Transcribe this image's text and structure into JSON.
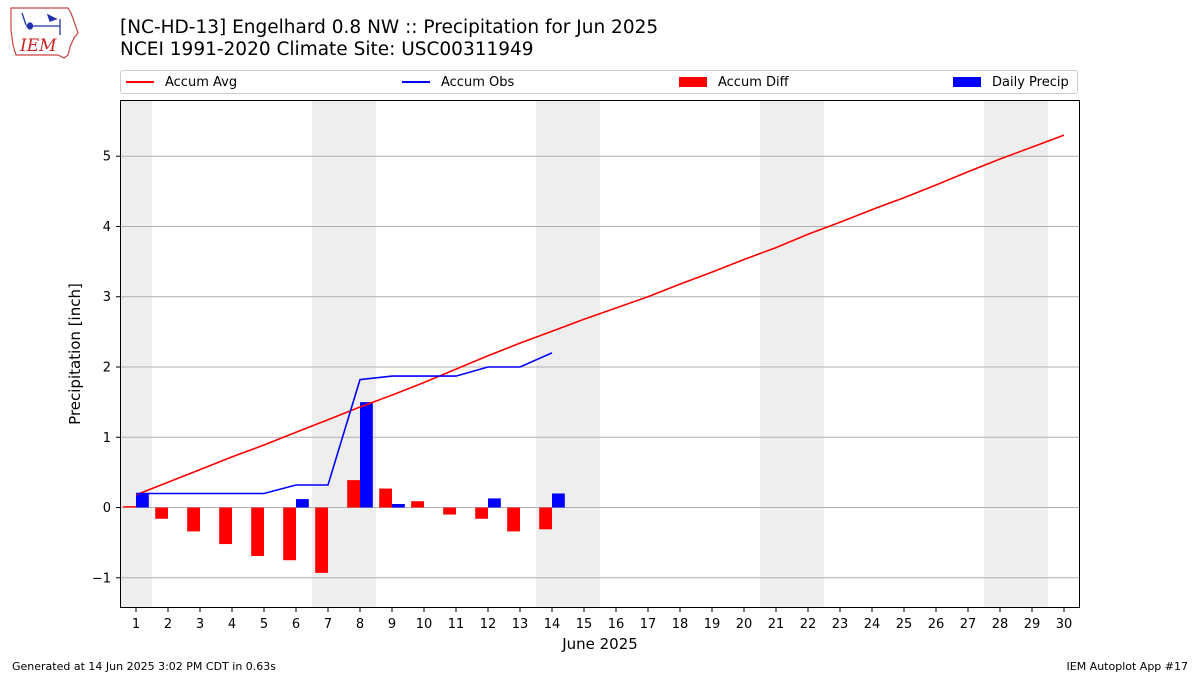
{
  "logo": {
    "text": "IEM",
    "icon": "iowa-state-outline-icon"
  },
  "title": {
    "line1": "[NC-HD-13] Engelhard 0.8 NW :: Precipitation for Jun 2025",
    "line2": "NCEI 1991-2020 Climate Site: USC00311949"
  },
  "footer": {
    "left": "Generated at 14 Jun 2025 3:02 PM CDT in 0.63s",
    "right": "IEM Autoplot App #17"
  },
  "colors": {
    "accum_avg": "#ff0000",
    "accum_obs": "#0000ff",
    "accum_diff": "#ff0000",
    "daily_precip": "#0000ff",
    "weekend_shade": "#eeeeee",
    "grid": "#b0b0b0"
  },
  "chart_data": {
    "type": "bar",
    "xlabel": "June 2025",
    "ylabel": "Precipitation [inch]",
    "xlim": [
      0.5,
      30.5
    ],
    "ylim": [
      -1.43,
      5.8
    ],
    "yticks": [
      -1,
      0,
      1,
      2,
      3,
      4,
      5
    ],
    "ytick_labels": [
      "−1",
      "0",
      "1",
      "2",
      "3",
      "4",
      "5"
    ],
    "grid": true,
    "legend_position": "top",
    "days": [
      1,
      2,
      3,
      4,
      5,
      6,
      7,
      8,
      9,
      10,
      11,
      12,
      13,
      14,
      15,
      16,
      17,
      18,
      19,
      20,
      21,
      22,
      23,
      24,
      25,
      26,
      27,
      28,
      29,
      30
    ],
    "weekend_days": [
      1,
      7,
      8,
      14,
      15,
      21,
      22,
      28,
      29
    ],
    "series": [
      {
        "name": "Accum Avg",
        "type": "line",
        "x": [
          1,
          2,
          3,
          4,
          5,
          6,
          7,
          8,
          9,
          10,
          11,
          12,
          13,
          14,
          15,
          16,
          17,
          18,
          19,
          20,
          21,
          22,
          23,
          24,
          25,
          26,
          27,
          28,
          29,
          30
        ],
        "values": [
          0.18,
          0.36,
          0.54,
          0.72,
          0.89,
          1.07,
          1.25,
          1.43,
          1.6,
          1.78,
          1.97,
          2.16,
          2.34,
          2.51,
          2.68,
          2.84,
          3.0,
          3.18,
          3.35,
          3.53,
          3.7,
          3.89,
          4.06,
          4.24,
          4.41,
          4.59,
          4.78,
          4.96,
          5.13,
          5.3
        ]
      },
      {
        "name": "Accum Obs",
        "type": "line",
        "x": [
          1,
          2,
          3,
          4,
          5,
          6,
          7,
          8,
          9,
          10,
          11,
          12,
          13,
          14
        ],
        "values": [
          0.2,
          0.2,
          0.2,
          0.2,
          0.2,
          0.32,
          0.32,
          1.82,
          1.87,
          1.87,
          1.87,
          2.0,
          2.0,
          2.2
        ]
      },
      {
        "name": "Accum Diff",
        "type": "bar",
        "x": [
          1,
          2,
          3,
          4,
          5,
          6,
          7,
          8,
          9,
          10,
          11,
          12,
          13,
          14
        ],
        "values": [
          0.02,
          -0.16,
          -0.34,
          -0.52,
          -0.69,
          -0.75,
          -0.93,
          0.39,
          0.27,
          0.09,
          -0.1,
          -0.16,
          -0.34,
          -0.31
        ]
      },
      {
        "name": "Daily Precip",
        "type": "bar",
        "x": [
          1,
          2,
          3,
          4,
          5,
          6,
          7,
          8,
          9,
          10,
          11,
          12,
          13,
          14
        ],
        "values": [
          0.2,
          0.0,
          0.0,
          0.0,
          0.0,
          0.12,
          0.0,
          1.5,
          0.05,
          0.0,
          0.0,
          0.13,
          0.0,
          0.2
        ]
      }
    ]
  }
}
